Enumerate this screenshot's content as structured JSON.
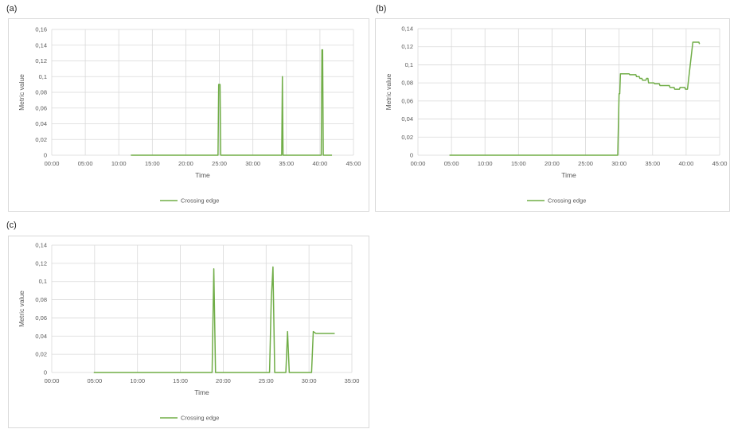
{
  "panels": [
    {
      "label": "(a)"
    },
    {
      "label": "(b)"
    },
    {
      "label": "(c)"
    }
  ],
  "colors": {
    "series": "#70ad47",
    "grid": "#d9d9d9",
    "text": "#595959"
  },
  "chart_data": [
    {
      "type": "line",
      "title": "",
      "xlabel": "Time",
      "ylabel": "Metric value",
      "xlim": [
        0,
        45
      ],
      "ylim": [
        0,
        0.16
      ],
      "x_ticks": [
        "00:00",
        "05:00",
        "10:00",
        "15:00",
        "20:00",
        "25:00",
        "30:00",
        "35:00",
        "40:00",
        "45:00"
      ],
      "y_ticks": [
        "0",
        "0,02",
        "0,04",
        "0,06",
        "0,08",
        "0,1",
        "0,12",
        "0,14",
        "0,16"
      ],
      "grid": true,
      "legend_position": "bottom",
      "series": [
        {
          "name": "Crossing edge",
          "x": [
            11.8,
            24.8,
            24.9,
            25.0,
            25.1,
            25.2,
            34.3,
            34.4,
            34.5,
            40.2,
            40.3,
            40.4,
            40.5,
            41.8
          ],
          "y": [
            0,
            0,
            0.09,
            0.09,
            0.09,
            0,
            0,
            0.1,
            0,
            0,
            0.134,
            0.134,
            0,
            0
          ]
        }
      ]
    },
    {
      "type": "line",
      "title": "",
      "xlabel": "Time",
      "ylabel": "Metric value",
      "xlim": [
        0,
        45
      ],
      "ylim": [
        0,
        0.14
      ],
      "x_ticks": [
        "00:00",
        "05:00",
        "10:00",
        "15:00",
        "20:00",
        "25:00",
        "30:00",
        "35:00",
        "40:00",
        "45:00"
      ],
      "y_ticks": [
        "0",
        "0,02",
        "0,04",
        "0,06",
        "0,08",
        "0,1",
        "0,12",
        "0,14"
      ],
      "grid": true,
      "legend_position": "bottom",
      "series": [
        {
          "name": "Crossing edge",
          "x": [
            4.7,
            29.8,
            30.0,
            30.1,
            30.2,
            30.3,
            31.5,
            31.6,
            32.5,
            32.6,
            33.0,
            33.1,
            33.4,
            33.5,
            34.0,
            34.1,
            34.3,
            34.4,
            35.2,
            35.3,
            36.0,
            36.1,
            37.5,
            37.6,
            38.2,
            38.3,
            39.0,
            39.1,
            39.8,
            39.9,
            40.2,
            41.0,
            41.1,
            41.9,
            42.0
          ],
          "y": [
            0,
            0,
            0.068,
            0.068,
            0.09,
            0.09,
            0.09,
            0.089,
            0.089,
            0.087,
            0.087,
            0.085,
            0.085,
            0.083,
            0.083,
            0.085,
            0.085,
            0.08,
            0.08,
            0.079,
            0.079,
            0.077,
            0.077,
            0.075,
            0.075,
            0.073,
            0.073,
            0.075,
            0.075,
            0.073,
            0.073,
            0.125,
            0.125,
            0.125,
            0.123
          ]
        }
      ]
    },
    {
      "type": "line",
      "title": "",
      "xlabel": "Time",
      "ylabel": "Metric value",
      "xlim": [
        0,
        35
      ],
      "ylim": [
        0,
        0.14
      ],
      "x_ticks": [
        "00:00",
        "05:00",
        "10:00",
        "15:00",
        "20:00",
        "25:00",
        "30:00",
        "35:00"
      ],
      "y_ticks": [
        "0",
        "0,02",
        "0,04",
        "0,06",
        "0,08",
        "0,1",
        "0,12",
        "0,14"
      ],
      "grid": true,
      "legend_position": "bottom",
      "series": [
        {
          "name": "Crossing edge",
          "x": [
            4.9,
            18.7,
            18.9,
            19.1,
            25.4,
            25.6,
            25.8,
            26.0,
            27.3,
            27.5,
            27.7,
            30.3,
            30.5,
            30.8,
            33.0
          ],
          "y": [
            0,
            0,
            0.114,
            0,
            0,
            0.08,
            0.116,
            0,
            0,
            0.045,
            0,
            0,
            0.045,
            0.043,
            0.043
          ]
        }
      ]
    }
  ]
}
